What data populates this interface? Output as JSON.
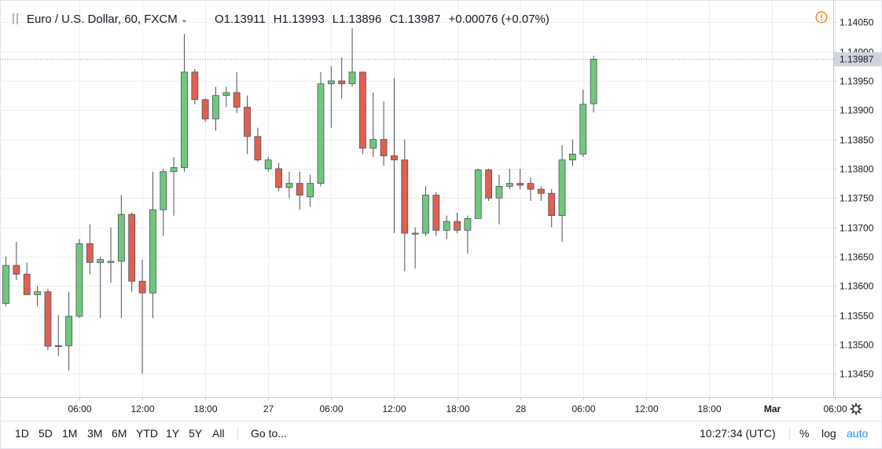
{
  "header": {
    "symbol": "Euro / U.S. Dollar, 60, FXCM",
    "caret": "⌄",
    "open": "O1.13911",
    "high": "H1.13993",
    "low": "L1.13896",
    "close": "C1.13987",
    "change": "+0.00076 (+0.07%)"
  },
  "bottom_bar": {
    "ranges": [
      "1D",
      "5D",
      "1M",
      "3M",
      "6M",
      "YTD",
      "1Y",
      "5Y",
      "All"
    ],
    "goto": "Go to...",
    "clock": "10:27:34 (UTC)",
    "percent": "%",
    "log": "log",
    "auto": "auto"
  },
  "colors": {
    "up": "#6ec97a",
    "down": "#e0604f",
    "wick": "#4a4f5c",
    "grid": "#eceef2",
    "axis_text": "#131722",
    "accent": "#2196f3",
    "warning": "#f57f17"
  },
  "chart_data": {
    "type": "candlestick",
    "title": "Euro / U.S. Dollar, 60, FXCM",
    "y_range": [
      1.1341,
      1.1408
    ],
    "y_ticks": [
      "1.13450",
      "1.13500",
      "1.13550",
      "1.13600",
      "1.13650",
      "1.13700",
      "1.13750",
      "1.13800",
      "1.13850",
      "1.13900",
      "1.13950",
      "1.14000",
      "1.14050"
    ],
    "x_ticks": [
      {
        "label": "06:00",
        "bar": 7
      },
      {
        "label": "12:00",
        "bar": 13
      },
      {
        "label": "18:00",
        "bar": 19
      },
      {
        "label": "27",
        "bar": 25
      },
      {
        "label": "06:00",
        "bar": 31
      },
      {
        "label": "12:00",
        "bar": 37
      },
      {
        "label": "18:00",
        "bar": 43
      },
      {
        "label": "28",
        "bar": 49
      },
      {
        "label": "06:00",
        "bar": 55
      },
      {
        "label": "12:00",
        "bar": 61
      },
      {
        "label": "18:00",
        "bar": 67
      },
      {
        "label": "Mar",
        "bar": 73
      },
      {
        "label": "06:00",
        "bar": 79
      }
    ],
    "last_price": "1.13987",
    "candles": [
      {
        "o": 1.1357,
        "h": 1.1365,
        "l": 1.13565,
        "c": 1.13635
      },
      {
        "o": 1.13635,
        "h": 1.13675,
        "l": 1.1361,
        "c": 1.1362
      },
      {
        "o": 1.1362,
        "h": 1.1364,
        "l": 1.13585,
        "c": 1.13585
      },
      {
        "o": 1.13585,
        "h": 1.136,
        "l": 1.13565,
        "c": 1.1359
      },
      {
        "o": 1.1359,
        "h": 1.13595,
        "l": 1.1349,
        "c": 1.13497
      },
      {
        "o": 1.13497,
        "h": 1.1355,
        "l": 1.1348,
        "c": 1.13498
      },
      {
        "o": 1.13498,
        "h": 1.1359,
        "l": 1.13455,
        "c": 1.13548
      },
      {
        "o": 1.13548,
        "h": 1.1368,
        "l": 1.13545,
        "c": 1.13672
      },
      {
        "o": 1.13672,
        "h": 1.13705,
        "l": 1.1362,
        "c": 1.1364
      },
      {
        "o": 1.1364,
        "h": 1.1365,
        "l": 1.13545,
        "c": 1.13645
      },
      {
        "o": 1.1364,
        "h": 1.137,
        "l": 1.13605,
        "c": 1.13642
      },
      {
        "o": 1.13642,
        "h": 1.13755,
        "l": 1.13545,
        "c": 1.13722
      },
      {
        "o": 1.13722,
        "h": 1.13725,
        "l": 1.1359,
        "c": 1.13608
      },
      {
        "o": 1.13608,
        "h": 1.13645,
        "l": 1.1345,
        "c": 1.13588
      },
      {
        "o": 1.13588,
        "h": 1.13795,
        "l": 1.13545,
        "c": 1.1373
      },
      {
        "o": 1.1373,
        "h": 1.138,
        "l": 1.13685,
        "c": 1.13795
      },
      {
        "o": 1.13795,
        "h": 1.1382,
        "l": 1.1372,
        "c": 1.13802
      },
      {
        "o": 1.13802,
        "h": 1.1403,
        "l": 1.13795,
        "c": 1.13965
      },
      {
        "o": 1.13965,
        "h": 1.1397,
        "l": 1.1391,
        "c": 1.13918
      },
      {
        "o": 1.13918,
        "h": 1.1392,
        "l": 1.1388,
        "c": 1.13885
      },
      {
        "o": 1.13885,
        "h": 1.1394,
        "l": 1.13865,
        "c": 1.13925
      },
      {
        "o": 1.13925,
        "h": 1.1394,
        "l": 1.13905,
        "c": 1.1393
      },
      {
        "o": 1.1393,
        "h": 1.13965,
        "l": 1.13895,
        "c": 1.13905
      },
      {
        "o": 1.13905,
        "h": 1.13925,
        "l": 1.13825,
        "c": 1.13855
      },
      {
        "o": 1.13855,
        "h": 1.1387,
        "l": 1.13812,
        "c": 1.13815
      },
      {
        "o": 1.138,
        "h": 1.1382,
        "l": 1.13795,
        "c": 1.13815
      },
      {
        "o": 1.138,
        "h": 1.1381,
        "l": 1.13762,
        "c": 1.13768
      },
      {
        "o": 1.13768,
        "h": 1.13795,
        "l": 1.1375,
        "c": 1.13775
      },
      {
        "o": 1.13775,
        "h": 1.13795,
        "l": 1.1373,
        "c": 1.13755
      },
      {
        "o": 1.13752,
        "h": 1.1379,
        "l": 1.13735,
        "c": 1.13775
      },
      {
        "o": 1.13775,
        "h": 1.13965,
        "l": 1.1377,
        "c": 1.13945
      },
      {
        "o": 1.13945,
        "h": 1.13975,
        "l": 1.1387,
        "c": 1.1395
      },
      {
        "o": 1.1395,
        "h": 1.1399,
        "l": 1.1392,
        "c": 1.13945
      },
      {
        "o": 1.13945,
        "h": 1.1404,
        "l": 1.1394,
        "c": 1.13965
      },
      {
        "o": 1.13965,
        "h": 1.13965,
        "l": 1.13825,
        "c": 1.13835
      },
      {
        "o": 1.13835,
        "h": 1.1393,
        "l": 1.1382,
        "c": 1.1385
      },
      {
        "o": 1.1385,
        "h": 1.13915,
        "l": 1.13805,
        "c": 1.13822
      },
      {
        "o": 1.13822,
        "h": 1.13955,
        "l": 1.1369,
        "c": 1.13815
      },
      {
        "o": 1.13815,
        "h": 1.1385,
        "l": 1.13625,
        "c": 1.1369
      },
      {
        "o": 1.1369,
        "h": 1.137,
        "l": 1.1363,
        "c": 1.1369
      },
      {
        "o": 1.1369,
        "h": 1.1377,
        "l": 1.13685,
        "c": 1.13755
      },
      {
        "o": 1.13755,
        "h": 1.1376,
        "l": 1.13685,
        "c": 1.13695
      },
      {
        "o": 1.13695,
        "h": 1.1372,
        "l": 1.1368,
        "c": 1.1371
      },
      {
        "o": 1.1371,
        "h": 1.13725,
        "l": 1.1369,
        "c": 1.13695
      },
      {
        "o": 1.13695,
        "h": 1.1372,
        "l": 1.13655,
        "c": 1.13715
      },
      {
        "o": 1.13715,
        "h": 1.138,
        "l": 1.13715,
        "c": 1.13798
      },
      {
        "o": 1.13798,
        "h": 1.138,
        "l": 1.13745,
        "c": 1.1375
      },
      {
        "o": 1.1375,
        "h": 1.1379,
        "l": 1.13705,
        "c": 1.1377
      },
      {
        "o": 1.1377,
        "h": 1.138,
        "l": 1.13765,
        "c": 1.13775
      },
      {
        "o": 1.13775,
        "h": 1.138,
        "l": 1.13765,
        "c": 1.13772
      },
      {
        "o": 1.13775,
        "h": 1.13785,
        "l": 1.13745,
        "c": 1.13765
      },
      {
        "o": 1.13765,
        "h": 1.1377,
        "l": 1.13745,
        "c": 1.13758
      },
      {
        "o": 1.13758,
        "h": 1.13765,
        "l": 1.137,
        "c": 1.1372
      },
      {
        "o": 1.1372,
        "h": 1.1384,
        "l": 1.13675,
        "c": 1.13815
      },
      {
        "o": 1.13815,
        "h": 1.1385,
        "l": 1.13805,
        "c": 1.13825
      },
      {
        "o": 1.13825,
        "h": 1.13935,
        "l": 1.1382,
        "c": 1.1391
      },
      {
        "o": 1.13911,
        "h": 1.13993,
        "l": 1.13896,
        "c": 1.13987
      }
    ]
  }
}
